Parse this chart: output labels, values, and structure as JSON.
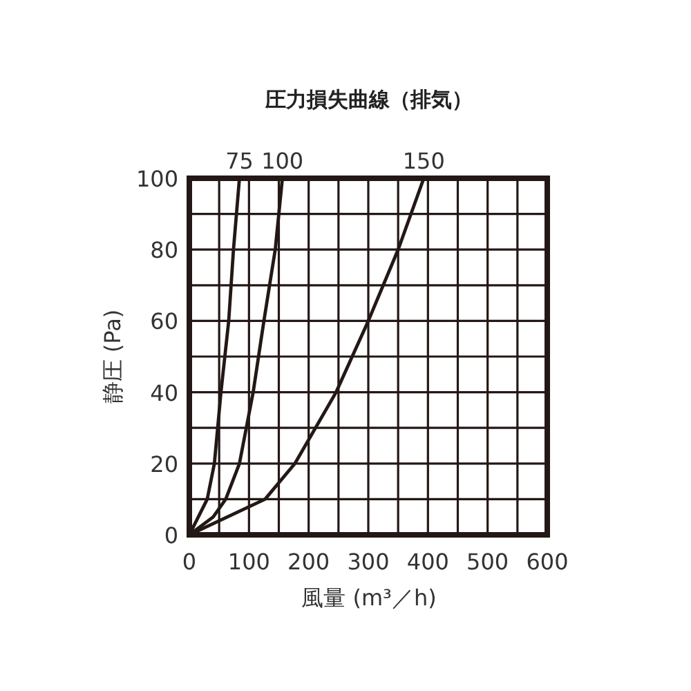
{
  "chart_data": {
    "type": "line",
    "title": "圧力損失曲線（排気）",
    "xlabel": "風量 (m³／h)",
    "ylabel": "静圧 (Pa)",
    "xlim": [
      0,
      600
    ],
    "ylim": [
      0,
      100
    ],
    "xticks": [
      0,
      {
        "value": 50,
        "label": null
      },
      100,
      {
        "value": 150,
        "label": null
      },
      200,
      {
        "value": 250,
        "label": null
      },
      300,
      {
        "value": 350,
        "label": null
      },
      400,
      {
        "value": 450,
        "label": null
      },
      500,
      {
        "value": 550,
        "label": null
      },
      600
    ],
    "yticks": [
      0,
      {
        "value": 10,
        "label": null
      },
      20,
      {
        "value": 30,
        "label": null
      },
      40,
      {
        "value": 50,
        "label": null
      },
      60,
      {
        "value": 70,
        "label": null
      },
      80,
      {
        "value": 90,
        "label": null
      },
      100
    ],
    "grid": true,
    "marker": "none",
    "line_style": "solid",
    "series": [
      {
        "name": "75",
        "color": "#231815",
        "x": [
          0,
          30,
          42,
          53,
          66,
          74,
          84
        ],
        "values": [
          0,
          10,
          20,
          40,
          60,
          80,
          100
        ]
      },
      {
        "name": "100",
        "color": "#231815",
        "x": [
          0,
          40,
          61,
          84,
          107,
          125,
          144,
          156
        ],
        "values": [
          0,
          5,
          10,
          20,
          40,
          60,
          80,
          100
        ]
      },
      {
        "name": "150",
        "color": "#231815",
        "x": [
          0,
          127,
          177,
          246,
          300,
          350,
          393
        ],
        "values": [
          0,
          10,
          20,
          40,
          60,
          80,
          100
        ]
      }
    ]
  }
}
